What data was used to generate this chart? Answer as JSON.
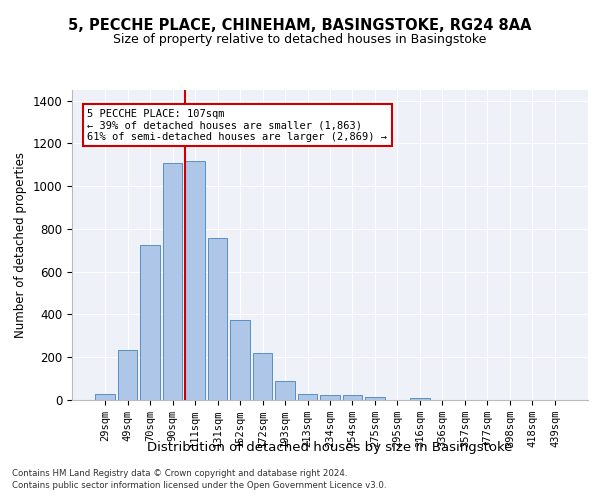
{
  "title1": "5, PECCHE PLACE, CHINEHAM, BASINGSTOKE, RG24 8AA",
  "title2": "Size of property relative to detached houses in Basingstoke",
  "xlabel": "Distribution of detached houses by size in Basingstoke",
  "ylabel": "Number of detached properties",
  "categories": [
    "29sqm",
    "49sqm",
    "70sqm",
    "90sqm",
    "111sqm",
    "131sqm",
    "152sqm",
    "172sqm",
    "193sqm",
    "213sqm",
    "234sqm",
    "254sqm",
    "275sqm",
    "295sqm",
    "316sqm",
    "336sqm",
    "357sqm",
    "377sqm",
    "398sqm",
    "418sqm",
    "439sqm"
  ],
  "bar_heights": [
    30,
    235,
    725,
    1110,
    1120,
    760,
    375,
    220,
    90,
    30,
    25,
    25,
    15,
    0,
    10,
    0,
    0,
    0,
    0,
    0,
    0
  ],
  "bar_color": "#aec6e8",
  "bar_edge_color": "#5a8fc0",
  "vline_color": "#cc0000",
  "annotation_text": "5 PECCHE PLACE: 107sqm\n← 39% of detached houses are smaller (1,863)\n61% of semi-detached houses are larger (2,869) →",
  "annotation_box_color": "#ffffff",
  "annotation_box_edge": "#cc0000",
  "ylim": [
    0,
    1450
  ],
  "yticks": [
    0,
    200,
    400,
    600,
    800,
    1000,
    1200,
    1400
  ],
  "bg_color": "#eef2f8",
  "grid_color": "#ffffff",
  "footer1": "Contains HM Land Registry data © Crown copyright and database right 2024.",
  "footer2": "Contains public sector information licensed under the Open Government Licence v3.0."
}
